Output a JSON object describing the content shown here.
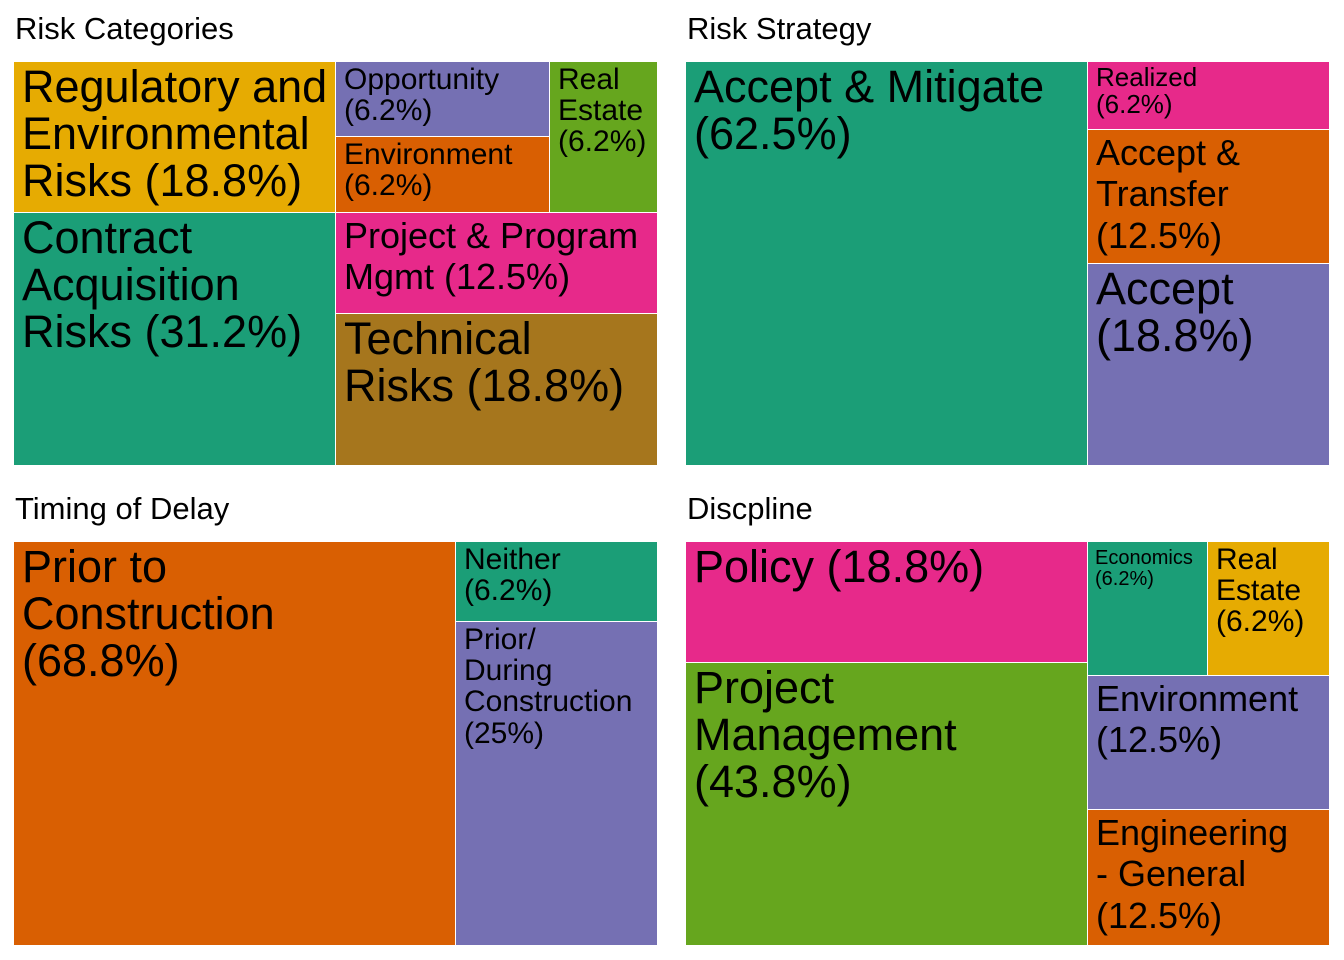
{
  "chart_data": [
    {
      "type": "treemap",
      "title": "Risk Categories",
      "tiles": [
        {
          "label": "Regulatory and\nEnvironmental\nRisks (18.8%)",
          "name": "Regulatory and Environmental Risks",
          "value": 18.8,
          "color": "#e6ab02"
        },
        {
          "label": "Contract\nAcquisition\nRisks (31.2%)",
          "name": "Contract Acquisition Risks",
          "value": 31.2,
          "color": "#1b9e77"
        },
        {
          "label": "Opportunity\n(6.2%)",
          "name": "Opportunity",
          "value": 6.2,
          "color": "#7570b3"
        },
        {
          "label": "Environment\n(6.2%)",
          "name": "Environment",
          "value": 6.2,
          "color": "#d95f02"
        },
        {
          "label": "Real\nEstate\n(6.2%)",
          "name": "Real Estate",
          "value": 6.2,
          "color": "#66a61e"
        },
        {
          "label": "Project & Program\nMgmt (12.5%)",
          "name": "Project & Program Mgmt",
          "value": 12.5,
          "color": "#e7298a"
        },
        {
          "label": "Technical\nRisks (18.8%)",
          "name": "Technical Risks",
          "value": 18.8,
          "color": "#a6761d"
        }
      ]
    },
    {
      "type": "treemap",
      "title": "Risk Strategy",
      "tiles": [
        {
          "label": "Accept & Mitigate\n(62.5%)",
          "name": "Accept & Mitigate",
          "value": 62.5,
          "color": "#1b9e77"
        },
        {
          "label": "Realized\n(6.2%)",
          "name": "Realized",
          "value": 6.2,
          "color": "#e7298a"
        },
        {
          "label": "Accept &\nTransfer\n(12.5%)",
          "name": "Accept & Transfer",
          "value": 12.5,
          "color": "#d95f02"
        },
        {
          "label": "Accept\n(18.8%)",
          "name": "Accept",
          "value": 18.8,
          "color": "#7570b3"
        }
      ]
    },
    {
      "type": "treemap",
      "title": "Timing of Delay",
      "tiles": [
        {
          "label": "Prior to\nConstruction\n(68.8%)",
          "name": "Prior to Construction",
          "value": 68.8,
          "color": "#d95f02"
        },
        {
          "label": "Neither\n(6.2%)",
          "name": "Neither",
          "value": 6.2,
          "color": "#1b9e77"
        },
        {
          "label": "Prior/\nDuring\nConstruction\n(25%)",
          "name": "Prior/During Construction",
          "value": 25,
          "color": "#7570b3"
        }
      ]
    },
    {
      "type": "treemap",
      "title": "Discpline",
      "tiles": [
        {
          "label": "Policy (18.8%)",
          "name": "Policy",
          "value": 18.8,
          "color": "#e7298a"
        },
        {
          "label": "Project\nManagement\n(43.8%)",
          "name": "Project Management",
          "value": 43.8,
          "color": "#66a61e"
        },
        {
          "label": "Economics\n(6.2%)",
          "name": "Economics",
          "value": 6.2,
          "color": "#1b9e77"
        },
        {
          "label": "Real\nEstate\n(6.2%)",
          "name": "Real Estate",
          "value": 6.2,
          "color": "#e6ab02"
        },
        {
          "label": "Environment\n(12.5%)",
          "name": "Environment",
          "value": 12.5,
          "color": "#7570b3"
        },
        {
          "label": "Engineering\n- General\n(12.5%)",
          "name": "Engineering - General",
          "value": 12.5,
          "color": "#d95f02"
        }
      ]
    }
  ]
}
